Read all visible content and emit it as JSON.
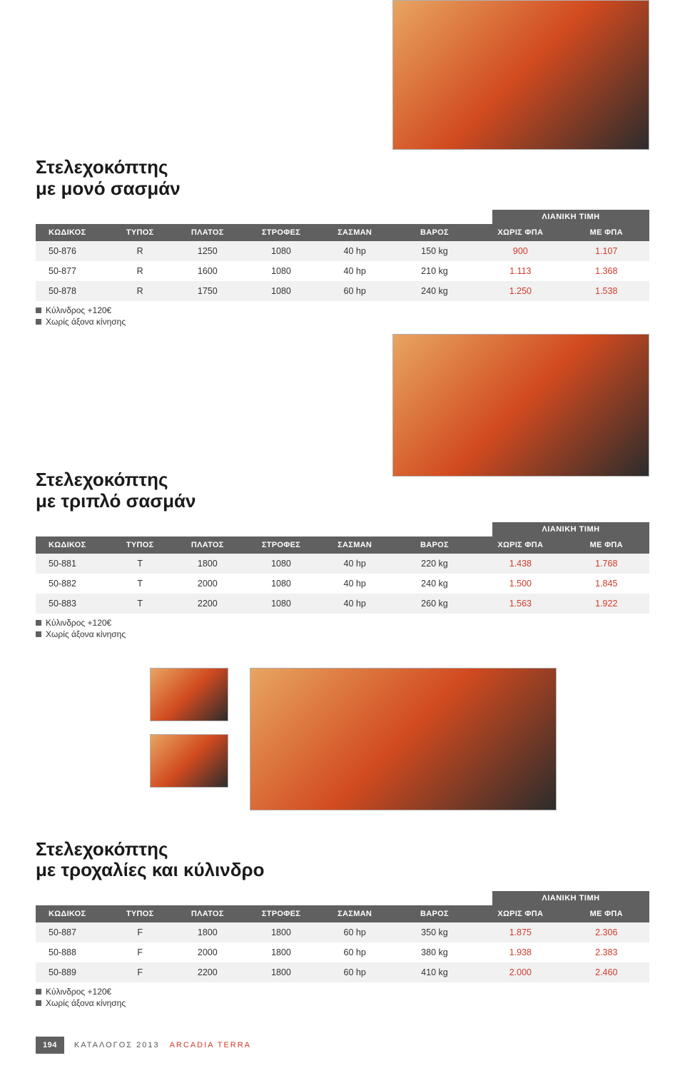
{
  "colors": {
    "header_bg": "#606060",
    "header_fg": "#ffffff",
    "row_odd": "#f1f1f1",
    "row_even": "#ffffff",
    "price_red": "#d13a2a",
    "text": "#2b2b2b",
    "bullet": "#606060"
  },
  "typography": {
    "title_fontsize": 26,
    "header_fontsize": 11,
    "body_fontsize": 12.5,
    "notes_fontsize": 12
  },
  "price_badge_label": "ΛΙΑΝΙΚΗ ΤΙΜΗ",
  "table_headers": {
    "code": "ΚΩΔΙΚΟΣ",
    "type": "ΤΥΠΟΣ",
    "width": "ΠΛΑΤΟΣ",
    "rpm": "ΣΤΡΟΦΕΣ",
    "gearbox": "ΣΑΣΜΑΝ",
    "weight": "ΒΑΡΟΣ",
    "no_vat": "ΧΩΡΙΣ ΦΠΑ",
    "with_vat": "ΜΕ ΦΠΑ"
  },
  "col_widths_pct": [
    12,
    10,
    12,
    12,
    12,
    14,
    14,
    14
  ],
  "notes": {
    "line1": "Κύλινδρος +120€",
    "line2": "Χωρίς άξονα κίνησης"
  },
  "sections": [
    {
      "title_line1": "Στελεχοκόπτης",
      "title_line2": "με μονό σασμάν",
      "rows": [
        {
          "code": "50-876",
          "type": "R",
          "width": "1250",
          "rpm": "1080",
          "gearbox": "40 hp",
          "weight": "150 kg",
          "no_vat": "900",
          "with_vat": "1.107"
        },
        {
          "code": "50-877",
          "type": "R",
          "width": "1600",
          "rpm": "1080",
          "gearbox": "40 hp",
          "weight": "210 kg",
          "no_vat": "1.113",
          "with_vat": "1.368"
        },
        {
          "code": "50-878",
          "type": "R",
          "width": "1750",
          "rpm": "1080",
          "gearbox": "60 hp",
          "weight": "240 kg",
          "no_vat": "1.250",
          "with_vat": "1.538"
        }
      ]
    },
    {
      "title_line1": "Στελεχοκόπτης",
      "title_line2": "με τριπλό σασμάν",
      "rows": [
        {
          "code": "50-881",
          "type": "T",
          "width": "1800",
          "rpm": "1080",
          "gearbox": "40 hp",
          "weight": "220 kg",
          "no_vat": "1.438",
          "with_vat": "1.768"
        },
        {
          "code": "50-882",
          "type": "T",
          "width": "2000",
          "rpm": "1080",
          "gearbox": "40 hp",
          "weight": "240 kg",
          "no_vat": "1.500",
          "with_vat": "1.845"
        },
        {
          "code": "50-883",
          "type": "T",
          "width": "2200",
          "rpm": "1080",
          "gearbox": "40 hp",
          "weight": "260 kg",
          "no_vat": "1.563",
          "with_vat": "1.922"
        }
      ]
    },
    {
      "title_line1": "Στελεχοκόπτης",
      "title_line2": "με τροχαλίες και κύλινδρο",
      "rows": [
        {
          "code": "50-887",
          "type": "F",
          "width": "1800",
          "rpm": "1800",
          "gearbox": "60 hp",
          "weight": "350 kg",
          "no_vat": "1.875",
          "with_vat": "2.306"
        },
        {
          "code": "50-888",
          "type": "F",
          "width": "2000",
          "rpm": "1800",
          "gearbox": "60 hp",
          "weight": "380 kg",
          "no_vat": "1.938",
          "with_vat": "2.383"
        },
        {
          "code": "50-889",
          "type": "F",
          "width": "2200",
          "rpm": "1800",
          "gearbox": "60 hp",
          "weight": "410 kg",
          "no_vat": "2.000",
          "with_vat": "2.460"
        }
      ]
    }
  ],
  "footer": {
    "page_number": "194",
    "catalog_text": "ΚΑΤΑΛΟΓΟΣ 2013",
    "brand": "ARCADIA TERRA"
  }
}
